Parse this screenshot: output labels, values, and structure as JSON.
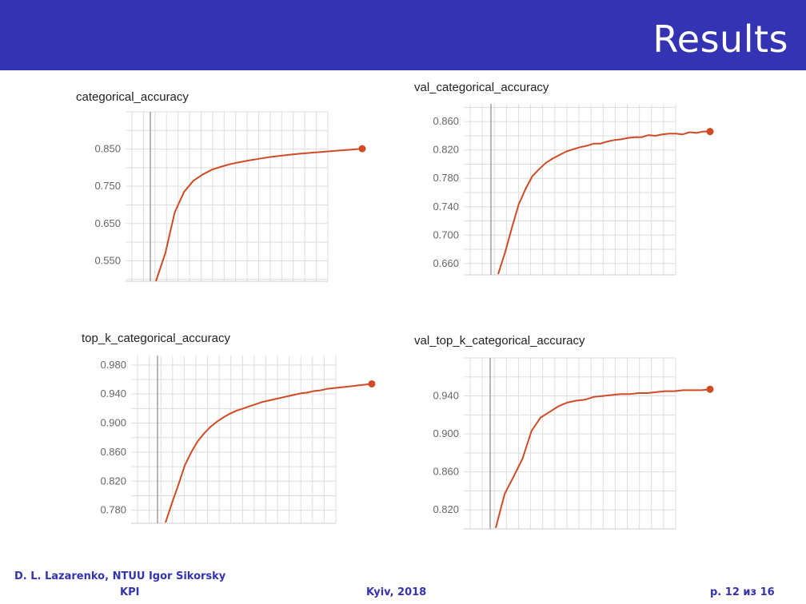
{
  "slide": {
    "title": "Results",
    "footer": {
      "author_line1": "D. L. Lazarenko, NTUU Igor Sikorsky",
      "author_line2": "KPI",
      "place": "Kyiv, 2018",
      "page": "p. 12 из 16"
    }
  },
  "colors": {
    "header": "#3333b3",
    "line": "#d04a23",
    "grid": "#dddddd",
    "cursor": "#9e9e9e"
  },
  "chart_data": [
    {
      "type": "line",
      "title": "categorical_accuracy",
      "ytick_labels": [
        "0.850",
        "0.750",
        "0.650",
        "0.550"
      ],
      "yticks": [
        0.85,
        0.75,
        0.65,
        0.55
      ],
      "ylim": [
        0.495,
        0.95
      ],
      "grid": true,
      "series": [
        {
          "values": [
            0.495,
            0.57,
            0.68,
            0.735,
            0.765,
            0.782,
            0.795,
            0.803,
            0.81,
            0.815,
            0.82,
            0.824,
            0.828,
            0.831,
            0.834,
            0.837,
            0.839,
            0.841,
            0.843,
            0.845,
            0.847,
            0.849,
            0.851
          ]
        }
      ]
    },
    {
      "type": "line",
      "title": "val_categorical_accuracy",
      "ytick_labels": [
        "0.860",
        "0.820",
        "0.780",
        "0.740",
        "0.700",
        "0.660"
      ],
      "yticks": [
        0.86,
        0.82,
        0.78,
        0.74,
        0.7,
        0.66
      ],
      "ylim": [
        0.644,
        0.885
      ],
      "grid": true,
      "series": [
        {
          "values": [
            0.645,
            0.675,
            0.71,
            0.743,
            0.765,
            0.783,
            0.793,
            0.802,
            0.808,
            0.813,
            0.818,
            0.821,
            0.824,
            0.826,
            0.829,
            0.829,
            0.832,
            0.834,
            0.835,
            0.837,
            0.838,
            0.838,
            0.841,
            0.84,
            0.842,
            0.843,
            0.843,
            0.842,
            0.845,
            0.844,
            0.846,
            0.846
          ]
        }
      ]
    },
    {
      "type": "line",
      "title": "top_k_categorical_accuracy",
      "ytick_labels": [
        "0.980",
        "0.940",
        "0.900",
        "0.860",
        "0.820",
        "0.780"
      ],
      "yticks": [
        0.98,
        0.94,
        0.9,
        0.86,
        0.82,
        0.78
      ],
      "ylim": [
        0.762,
        0.993
      ],
      "grid": true,
      "series": [
        {
          "values": [
            0.763,
            0.79,
            0.815,
            0.842,
            0.86,
            0.875,
            0.886,
            0.895,
            0.902,
            0.908,
            0.913,
            0.917,
            0.92,
            0.923,
            0.926,
            0.929,
            0.931,
            0.933,
            0.935,
            0.937,
            0.939,
            0.941,
            0.942,
            0.944,
            0.945,
            0.947,
            0.948,
            0.949,
            0.95,
            0.951,
            0.952,
            0.953,
            0.954
          ]
        }
      ]
    },
    {
      "type": "line",
      "title": "val_top_k_categorical_accuracy",
      "ytick_labels": [
        "0.940",
        "0.900",
        "0.860",
        "0.820"
      ],
      "yticks": [
        0.94,
        0.9,
        0.86,
        0.82
      ],
      "ylim": [
        0.8,
        0.98
      ],
      "grid": true,
      "series": [
        {
          "values": [
            0.801,
            0.837,
            0.855,
            0.874,
            0.903,
            0.917,
            0.923,
            0.929,
            0.933,
            0.935,
            0.936,
            0.939,
            0.94,
            0.941,
            0.942,
            0.942,
            0.943,
            0.943,
            0.944,
            0.945,
            0.945,
            0.946,
            0.946,
            0.946,
            0.947
          ]
        }
      ]
    }
  ]
}
